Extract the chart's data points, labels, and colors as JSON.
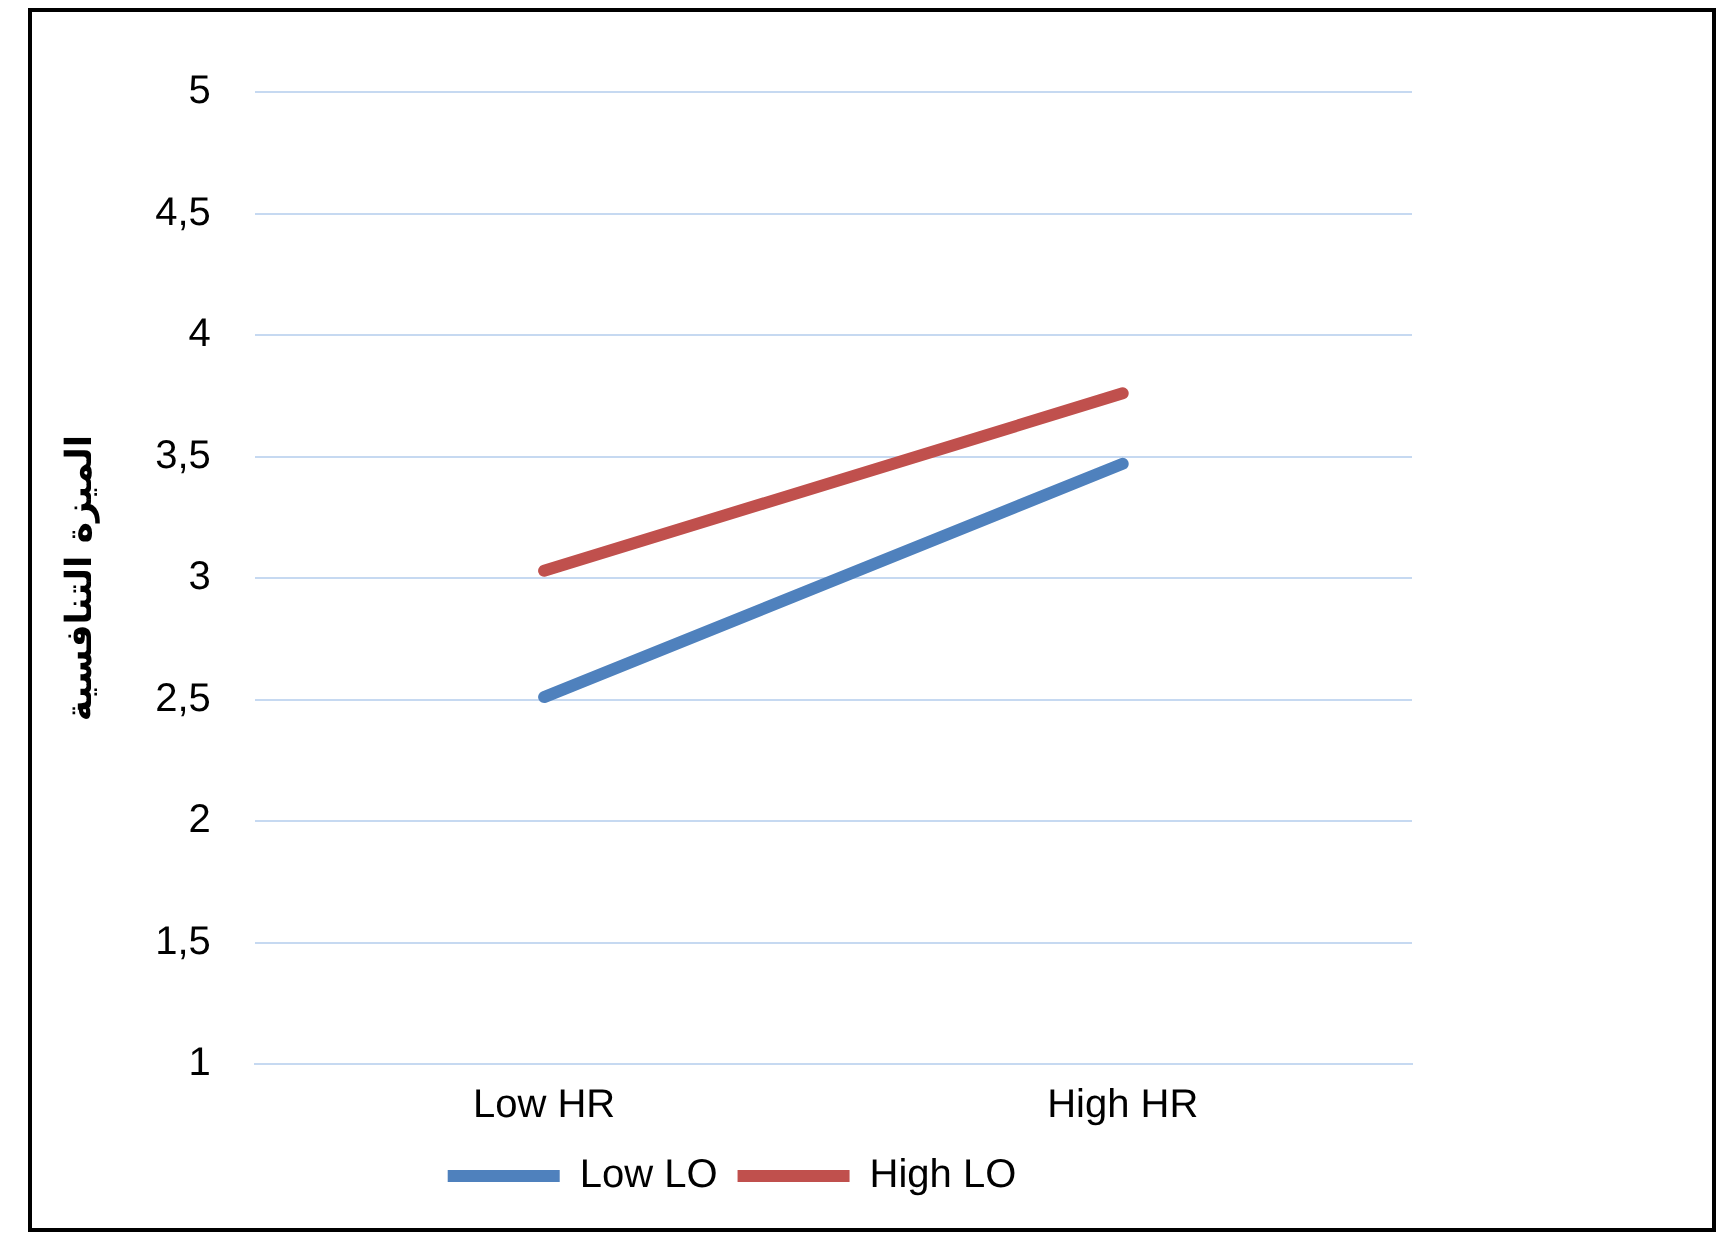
{
  "chart_data": {
    "type": "line",
    "ylabel": "الميزة التنافسية",
    "categories": [
      "Low HR",
      "High HR"
    ],
    "series": [
      {
        "name": "Low LO",
        "color": "#4f81bd",
        "values": [
          2.51,
          3.47
        ]
      },
      {
        "name": "High LO",
        "color": "#c0504d",
        "values": [
          3.03,
          3.76
        ]
      }
    ],
    "ylim": [
      1,
      5
    ],
    "yticks": [
      1,
      {
        "value": 1.5,
        "label": "1,5"
      },
      2,
      {
        "value": 2.5,
        "label": "2,5"
      },
      3,
      {
        "value": 3.5,
        "label": "3,5"
      },
      4,
      {
        "value": 4.5,
        "label": "4,5"
      },
      5
    ],
    "grid": "y",
    "legend": "bottom",
    "marker": "none",
    "line_style": "solid"
  }
}
